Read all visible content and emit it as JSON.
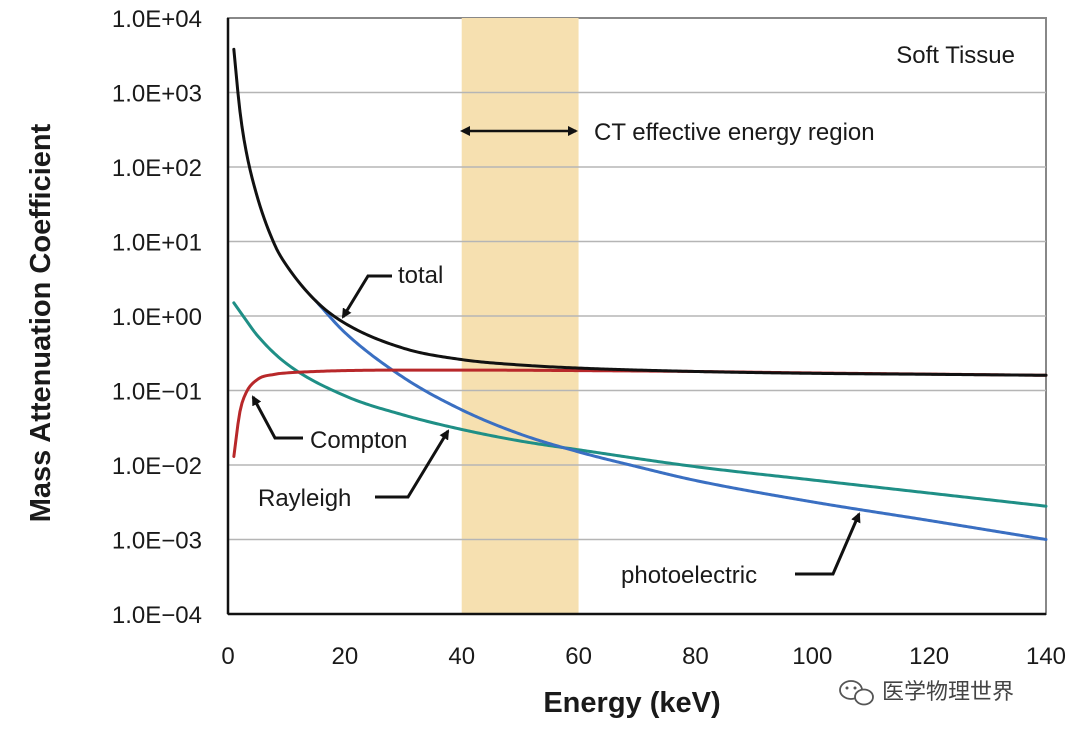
{
  "chart_data": {
    "type": "line",
    "title": "",
    "xlabel": "Energy (keV)",
    "ylabel": "Mass Attenuation Coefficient",
    "xlim": [
      0,
      140
    ],
    "ylim_log10": [
      -4,
      4
    ],
    "y_scale": "log",
    "grid": "horizontal",
    "x_ticks": [
      0,
      20,
      40,
      60,
      80,
      100,
      120,
      140
    ],
    "x_tick_labels": [
      "0",
      "20",
      "40",
      "60",
      "80",
      "100",
      "120",
      "140"
    ],
    "y_ticks_log10": [
      4,
      3,
      2,
      1,
      0,
      -1,
      -2,
      -3,
      -4
    ],
    "y_tick_labels": [
      "1.0E+04",
      "1.0E+03",
      "1.0E+02",
      "1.0E+01",
      "1.0E+00",
      "1.0E−01",
      "1.0E−02",
      "1.0E−03",
      "1.0E−04"
    ],
    "panel_label": "Soft Tissue",
    "highlight_region": {
      "label": "CT effective energy region",
      "x_range": [
        40,
        60
      ],
      "color": "#f6e0b0"
    },
    "series": [
      {
        "name": "total",
        "color": "#111111",
        "x": [
          1,
          2,
          3,
          5,
          8,
          10,
          15,
          20,
          30,
          40,
          50,
          60,
          80,
          100,
          120,
          140
        ],
        "y": [
          3800,
          600,
          180,
          40,
          9,
          4.8,
          1.6,
          0.8,
          0.37,
          0.26,
          0.22,
          0.2,
          0.18,
          0.17,
          0.165,
          0.16
        ]
      },
      {
        "name": "photoelectric",
        "color": "#3a6fc2",
        "x": [
          15,
          20,
          30,
          40,
          50,
          60,
          70,
          80,
          100,
          120,
          140
        ],
        "y": [
          1.6,
          0.6,
          0.15,
          0.055,
          0.026,
          0.015,
          0.0095,
          0.0062,
          0.0032,
          0.0018,
          0.001
        ]
      },
      {
        "name": "Compton",
        "color": "#b8282a",
        "x": [
          1,
          2,
          3,
          5,
          8,
          10,
          15,
          20,
          30,
          40,
          60,
          80,
          100,
          120,
          140
        ],
        "y": [
          0.013,
          0.05,
          0.09,
          0.14,
          0.165,
          0.172,
          0.18,
          0.185,
          0.188,
          0.188,
          0.185,
          0.18,
          0.172,
          0.166,
          0.16
        ]
      },
      {
        "name": "Rayleigh",
        "color": "#1f8f86",
        "x": [
          1,
          3,
          5,
          10,
          20,
          30,
          40,
          50,
          60,
          80,
          100,
          120,
          140
        ],
        "y": [
          1.5,
          0.9,
          0.55,
          0.23,
          0.085,
          0.047,
          0.03,
          0.021,
          0.016,
          0.0095,
          0.0063,
          0.0042,
          0.0028
        ]
      }
    ],
    "annotations": [
      {
        "text": "total",
        "series": "total",
        "at_x": 16
      },
      {
        "text": "Compton",
        "series": "Compton",
        "at_x": 4
      },
      {
        "text": "Rayleigh",
        "series": "Rayleigh",
        "at_x": 38
      },
      {
        "text": "photoelectric",
        "series": "photoelectric",
        "at_x": 107
      }
    ]
  },
  "watermark": {
    "text": "医学物理世界",
    "icon": "wechat-icon"
  }
}
